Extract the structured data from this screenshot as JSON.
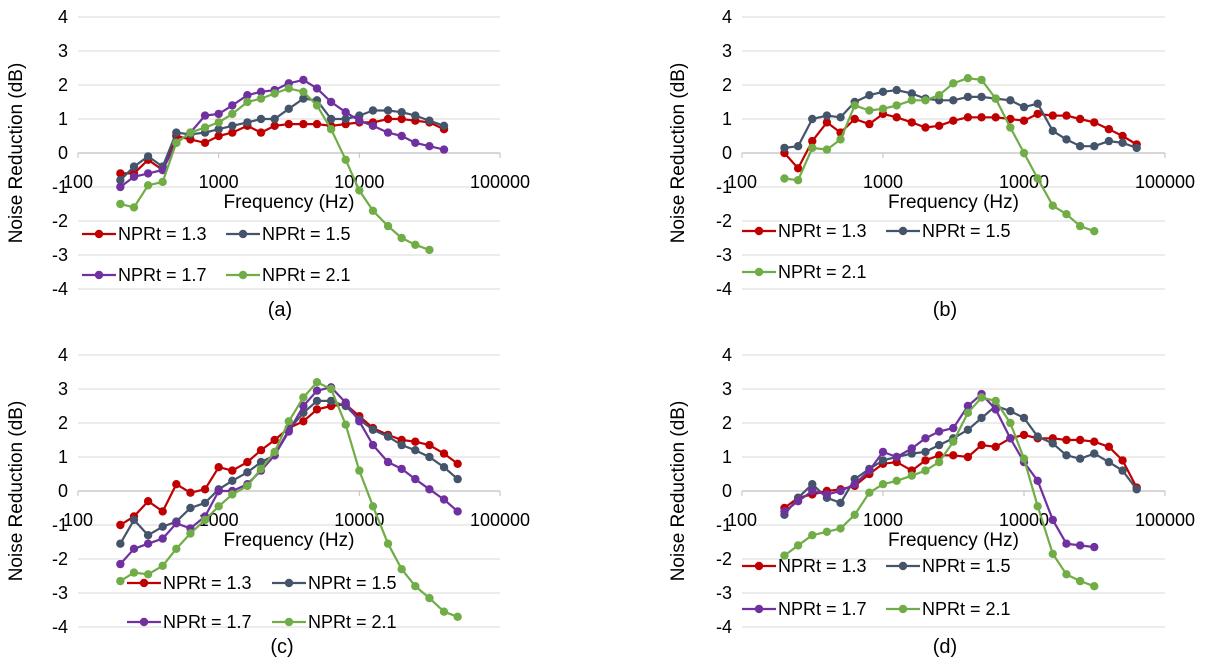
{
  "figure": {
    "series_colors": {
      "NPRt = 1.3": "#C00000",
      "NPRt = 1.5": "#44546A",
      "NPRt = 1.7": "#7030A0",
      "NPRt = 2.1": "#70AD47"
    },
    "grid_color": "#D9D9D9"
  },
  "chart_data": [
    {
      "type": "line",
      "caption": "(a)",
      "xlabel": "Frequency (Hz)",
      "ylabel": "Noise Reduction (dB)",
      "x_scale": "log",
      "xlim": [
        100,
        100000
      ],
      "ylim": [
        -4,
        4
      ],
      "x_tick_labels": [
        "100",
        "1000",
        "10000",
        "100000"
      ],
      "y_tick_labels": [
        "-4",
        "-3",
        "-2",
        "-1",
        "0",
        "1",
        "2",
        "3",
        "4"
      ],
      "grid": "horizontal",
      "legend_rows": [
        [
          "NPRt = 1.3",
          "NPRt = 1.5"
        ],
        [
          "NPRt = 1.7",
          "NPRt = 2.1"
        ]
      ],
      "series": [
        {
          "name": "NPRt = 1.3",
          "x": [
            200,
            250,
            315,
            400,
            500,
            630,
            800,
            1000,
            1250,
            1600,
            2000,
            2500,
            3150,
            4000,
            5000,
            6300,
            8000,
            10000,
            12500,
            16000,
            20000,
            25000,
            31500,
            40000
          ],
          "y": [
            -0.6,
            -0.6,
            -0.2,
            -0.5,
            0.5,
            0.4,
            0.3,
            0.5,
            0.6,
            0.8,
            0.6,
            0.8,
            0.85,
            0.85,
            0.85,
            0.8,
            0.85,
            0.9,
            0.9,
            1.0,
            1.0,
            0.95,
            0.9,
            0.7
          ]
        },
        {
          "name": "NPRt = 1.5",
          "x": [
            200,
            250,
            315,
            400,
            500,
            630,
            800,
            1000,
            1250,
            1600,
            2000,
            2500,
            3150,
            4000,
            5000,
            6300,
            8000,
            10000,
            12500,
            16000,
            20000,
            25000,
            31500,
            40000
          ],
          "y": [
            -0.8,
            -0.4,
            -0.1,
            -0.4,
            0.6,
            0.55,
            0.6,
            0.7,
            0.8,
            0.9,
            1.0,
            1.0,
            1.3,
            1.6,
            1.55,
            1.0,
            1.0,
            1.1,
            1.25,
            1.25,
            1.2,
            1.1,
            0.95,
            0.8
          ]
        },
        {
          "name": "NPRt = 1.7",
          "x": [
            200,
            250,
            315,
            400,
            500,
            630,
            800,
            1000,
            1250,
            1600,
            2000,
            2500,
            3150,
            4000,
            5000,
            6300,
            8000,
            10000,
            12500,
            16000,
            20000,
            25000,
            31500,
            40000
          ],
          "y": [
            -1.0,
            -0.7,
            -0.6,
            -0.5,
            0.3,
            0.6,
            1.1,
            1.15,
            1.4,
            1.7,
            1.8,
            1.85,
            2.05,
            2.15,
            1.9,
            1.5,
            1.2,
            0.95,
            0.8,
            0.6,
            0.5,
            0.3,
            0.2,
            0.1
          ]
        },
        {
          "name": "NPRt = 2.1",
          "x": [
            200,
            250,
            315,
            400,
            500,
            630,
            800,
            1000,
            1250,
            1600,
            2000,
            2500,
            3150,
            4000,
            5000,
            6300,
            8000,
            10000,
            12500,
            16000,
            20000,
            25000,
            31500
          ],
          "y": [
            -1.5,
            -1.6,
            -0.95,
            -0.85,
            0.3,
            0.6,
            0.75,
            0.9,
            1.15,
            1.5,
            1.6,
            1.75,
            1.9,
            1.8,
            1.4,
            0.7,
            -0.2,
            -1.1,
            -1.7,
            -2.15,
            -2.5,
            -2.7,
            -2.85
          ]
        }
      ]
    },
    {
      "type": "line",
      "caption": "(b)",
      "xlabel": "Frequency (Hz)",
      "ylabel": "Noise Reduction (dB)",
      "x_scale": "log",
      "xlim": [
        100,
        100000
      ],
      "ylim": [
        -4,
        4
      ],
      "x_tick_labels": [
        "100",
        "1000",
        "10000",
        "100000"
      ],
      "y_tick_labels": [
        "-4",
        "-3",
        "-2",
        "-1",
        "0",
        "1",
        "2",
        "3",
        "4"
      ],
      "grid": "horizontal",
      "legend_rows": [
        [
          "NPRt = 1.3",
          "NPRt = 1.5"
        ],
        [
          "NPRt = 2.1"
        ]
      ],
      "series": [
        {
          "name": "NPRt = 1.3",
          "x": [
            200,
            250,
            315,
            400,
            500,
            630,
            800,
            1000,
            1250,
            1600,
            2000,
            2500,
            3150,
            4000,
            5000,
            6300,
            8000,
            10000,
            12500,
            16000,
            20000,
            25000,
            31500,
            40000,
            50000,
            63000
          ],
          "y": [
            0.0,
            -0.45,
            0.35,
            0.9,
            0.6,
            1.0,
            0.85,
            1.15,
            1.05,
            0.9,
            0.75,
            0.8,
            0.95,
            1.05,
            1.05,
            1.05,
            1.0,
            0.95,
            1.15,
            1.1,
            1.1,
            1.0,
            0.9,
            0.7,
            0.5,
            0.25
          ]
        },
        {
          "name": "NPRt = 1.5",
          "x": [
            200,
            250,
            315,
            400,
            500,
            630,
            800,
            1000,
            1250,
            1600,
            2000,
            2500,
            3150,
            4000,
            5000,
            6300,
            8000,
            10000,
            12500,
            16000,
            20000,
            25000,
            31500,
            40000,
            50000,
            63000
          ],
          "y": [
            0.15,
            0.2,
            1.0,
            1.1,
            1.05,
            1.5,
            1.7,
            1.8,
            1.85,
            1.75,
            1.6,
            1.55,
            1.55,
            1.65,
            1.65,
            1.6,
            1.55,
            1.35,
            1.45,
            0.65,
            0.4,
            0.2,
            0.2,
            0.35,
            0.3,
            0.15
          ]
        },
        {
          "name": "NPRt = 2.1",
          "x": [
            200,
            250,
            315,
            400,
            500,
            630,
            800,
            1000,
            1250,
            1600,
            2000,
            2500,
            3150,
            4000,
            5000,
            6300,
            8000,
            10000,
            12500,
            16000,
            20000,
            25000,
            31500
          ],
          "y": [
            -0.75,
            -0.8,
            0.15,
            0.1,
            0.4,
            1.4,
            1.25,
            1.3,
            1.4,
            1.55,
            1.55,
            1.7,
            2.05,
            2.2,
            2.15,
            1.6,
            0.75,
            0.0,
            -0.75,
            -1.55,
            -1.8,
            -2.15,
            -2.3
          ]
        }
      ]
    },
    {
      "type": "line",
      "caption": "(c)",
      "xlabel": "Frequency (Hz)",
      "ylabel": "Noise Reduction (dB)",
      "x_scale": "log",
      "xlim": [
        100,
        100000
      ],
      "ylim": [
        -4,
        4
      ],
      "x_tick_labels": [
        "100",
        "1000",
        "10000",
        "100000"
      ],
      "y_tick_labels": [
        "-4",
        "-3",
        "-2",
        "-1",
        "0",
        "1",
        "2",
        "3",
        "4"
      ],
      "grid": "horizontal",
      "legend_rows": [
        [
          "NPRt = 1.3",
          "NPRt = 1.5"
        ],
        [
          "NPRt = 1.7",
          "NPRt = 2.1"
        ]
      ],
      "series": [
        {
          "name": "NPRt = 1.3",
          "x": [
            200,
            250,
            315,
            400,
            500,
            630,
            800,
            1000,
            1250,
            1600,
            2000,
            2500,
            3150,
            4000,
            5000,
            6300,
            8000,
            10000,
            12500,
            16000,
            20000,
            25000,
            31500,
            40000,
            50000
          ],
          "y": [
            -1.0,
            -0.75,
            -0.3,
            -0.6,
            0.2,
            -0.05,
            0.05,
            0.7,
            0.6,
            0.85,
            1.2,
            1.5,
            1.85,
            2.05,
            2.4,
            2.5,
            2.55,
            2.2,
            1.85,
            1.65,
            1.5,
            1.45,
            1.35,
            1.1,
            0.8
          ]
        },
        {
          "name": "NPRt = 1.5",
          "x": [
            200,
            250,
            315,
            400,
            500,
            630,
            800,
            1000,
            1250,
            1600,
            2000,
            2500,
            3150,
            4000,
            5000,
            6300,
            8000,
            10000,
            12500,
            16000,
            20000,
            25000,
            31500,
            40000,
            50000
          ],
          "y": [
            -1.55,
            -0.85,
            -1.3,
            -1.05,
            -0.9,
            -0.5,
            -0.35,
            0.05,
            0.3,
            0.55,
            0.85,
            1.05,
            1.8,
            2.3,
            2.65,
            2.65,
            2.5,
            2.1,
            1.8,
            1.6,
            1.35,
            1.2,
            1.0,
            0.7,
            0.35
          ]
        },
        {
          "name": "NPRt = 1.7",
          "x": [
            200,
            250,
            315,
            400,
            500,
            630,
            800,
            1000,
            1250,
            1600,
            2000,
            2500,
            3150,
            4000,
            5000,
            6300,
            8000,
            10000,
            12500,
            16000,
            20000,
            25000,
            31500,
            40000,
            50000
          ],
          "y": [
            -2.15,
            -1.7,
            -1.55,
            -1.4,
            -0.95,
            -1.1,
            -0.75,
            0.0,
            0.0,
            0.2,
            0.6,
            1.05,
            1.75,
            2.5,
            2.95,
            3.05,
            2.6,
            2.05,
            1.35,
            0.85,
            0.65,
            0.35,
            0.05,
            -0.25,
            -0.6
          ]
        },
        {
          "name": "NPRt = 2.1",
          "x": [
            200,
            250,
            315,
            400,
            500,
            630,
            800,
            1000,
            1250,
            1600,
            2000,
            2500,
            3150,
            4000,
            5000,
            6300,
            8000,
            10000,
            12500,
            16000,
            20000,
            25000,
            31500,
            40000,
            50000
          ],
          "y": [
            -2.65,
            -2.4,
            -2.45,
            -2.2,
            -1.7,
            -1.25,
            -0.85,
            -0.45,
            -0.1,
            0.15,
            0.65,
            1.15,
            2.05,
            2.75,
            3.2,
            3.0,
            1.95,
            0.6,
            -0.45,
            -1.55,
            -2.3,
            -2.8,
            -3.15,
            -3.55,
            -3.7
          ]
        }
      ]
    },
    {
      "type": "line",
      "caption": "(d)",
      "xlabel": "Frequency (Hz)",
      "ylabel": "Noise Reduction (dB)",
      "x_scale": "log",
      "xlim": [
        100,
        100000
      ],
      "ylim": [
        -4,
        4
      ],
      "x_tick_labels": [
        "100",
        "1000",
        "10000",
        "100000"
      ],
      "y_tick_labels": [
        "-4",
        "-3",
        "-2",
        "-1",
        "0",
        "1",
        "2",
        "3",
        "4"
      ],
      "grid": "horizontal",
      "legend_rows": [
        [
          "NPRt = 1.3",
          "NPRt = 1.5"
        ],
        [
          "NPRt = 1.7",
          "NPRt = 2.1"
        ]
      ],
      "series": [
        {
          "name": "NPRt = 1.3",
          "x": [
            200,
            250,
            315,
            400,
            500,
            630,
            800,
            1000,
            1250,
            1600,
            2000,
            2500,
            3150,
            4000,
            5000,
            6300,
            8000,
            10000,
            12500,
            16000,
            20000,
            25000,
            31500,
            40000,
            50000,
            63000
          ],
          "y": [
            -0.5,
            -0.2,
            -0.1,
            0.0,
            0.05,
            0.15,
            0.5,
            0.8,
            0.85,
            0.6,
            0.9,
            1.05,
            1.05,
            1.0,
            1.35,
            1.3,
            1.55,
            1.65,
            1.55,
            1.55,
            1.5,
            1.5,
            1.45,
            1.3,
            0.9,
            0.1
          ]
        },
        {
          "name": "NPRt = 1.5",
          "x": [
            200,
            250,
            315,
            400,
            500,
            630,
            800,
            1000,
            1250,
            1600,
            2000,
            2500,
            3150,
            4000,
            5000,
            6300,
            8000,
            10000,
            12500,
            16000,
            20000,
            25000,
            31500,
            40000,
            50000,
            63000
          ],
          "y": [
            -0.7,
            -0.2,
            0.2,
            -0.2,
            -0.35,
            0.35,
            0.65,
            0.9,
            1.0,
            1.1,
            1.15,
            1.35,
            1.55,
            1.8,
            2.15,
            2.5,
            2.35,
            2.15,
            1.6,
            1.4,
            1.05,
            0.95,
            1.1,
            0.85,
            0.6,
            0.05
          ]
        },
        {
          "name": "NPRt = 1.7",
          "x": [
            200,
            250,
            315,
            400,
            500,
            630,
            800,
            1000,
            1250,
            1600,
            2000,
            2500,
            3150,
            4000,
            5000,
            6300,
            8000,
            10000,
            12500,
            16000,
            20000,
            25000,
            31500
          ],
          "y": [
            -0.6,
            -0.3,
            0.0,
            -0.1,
            0.0,
            0.2,
            0.6,
            1.15,
            1.0,
            1.25,
            1.55,
            1.75,
            1.85,
            2.5,
            2.85,
            2.4,
            1.55,
            0.85,
            0.3,
            -0.85,
            -1.55,
            -1.6,
            -1.65
          ]
        },
        {
          "name": "NPRt = 2.1",
          "x": [
            200,
            250,
            315,
            400,
            500,
            630,
            800,
            1000,
            1250,
            1600,
            2000,
            2500,
            3150,
            4000,
            5000,
            6300,
            8000,
            10000,
            12500,
            16000,
            20000,
            25000,
            31500
          ],
          "y": [
            -1.9,
            -1.6,
            -1.3,
            -1.2,
            -1.1,
            -0.7,
            -0.05,
            0.2,
            0.3,
            0.45,
            0.6,
            0.85,
            1.45,
            2.3,
            2.75,
            2.65,
            2.0,
            0.95,
            -0.45,
            -1.85,
            -2.45,
            -2.65,
            -2.8
          ]
        }
      ]
    }
  ]
}
